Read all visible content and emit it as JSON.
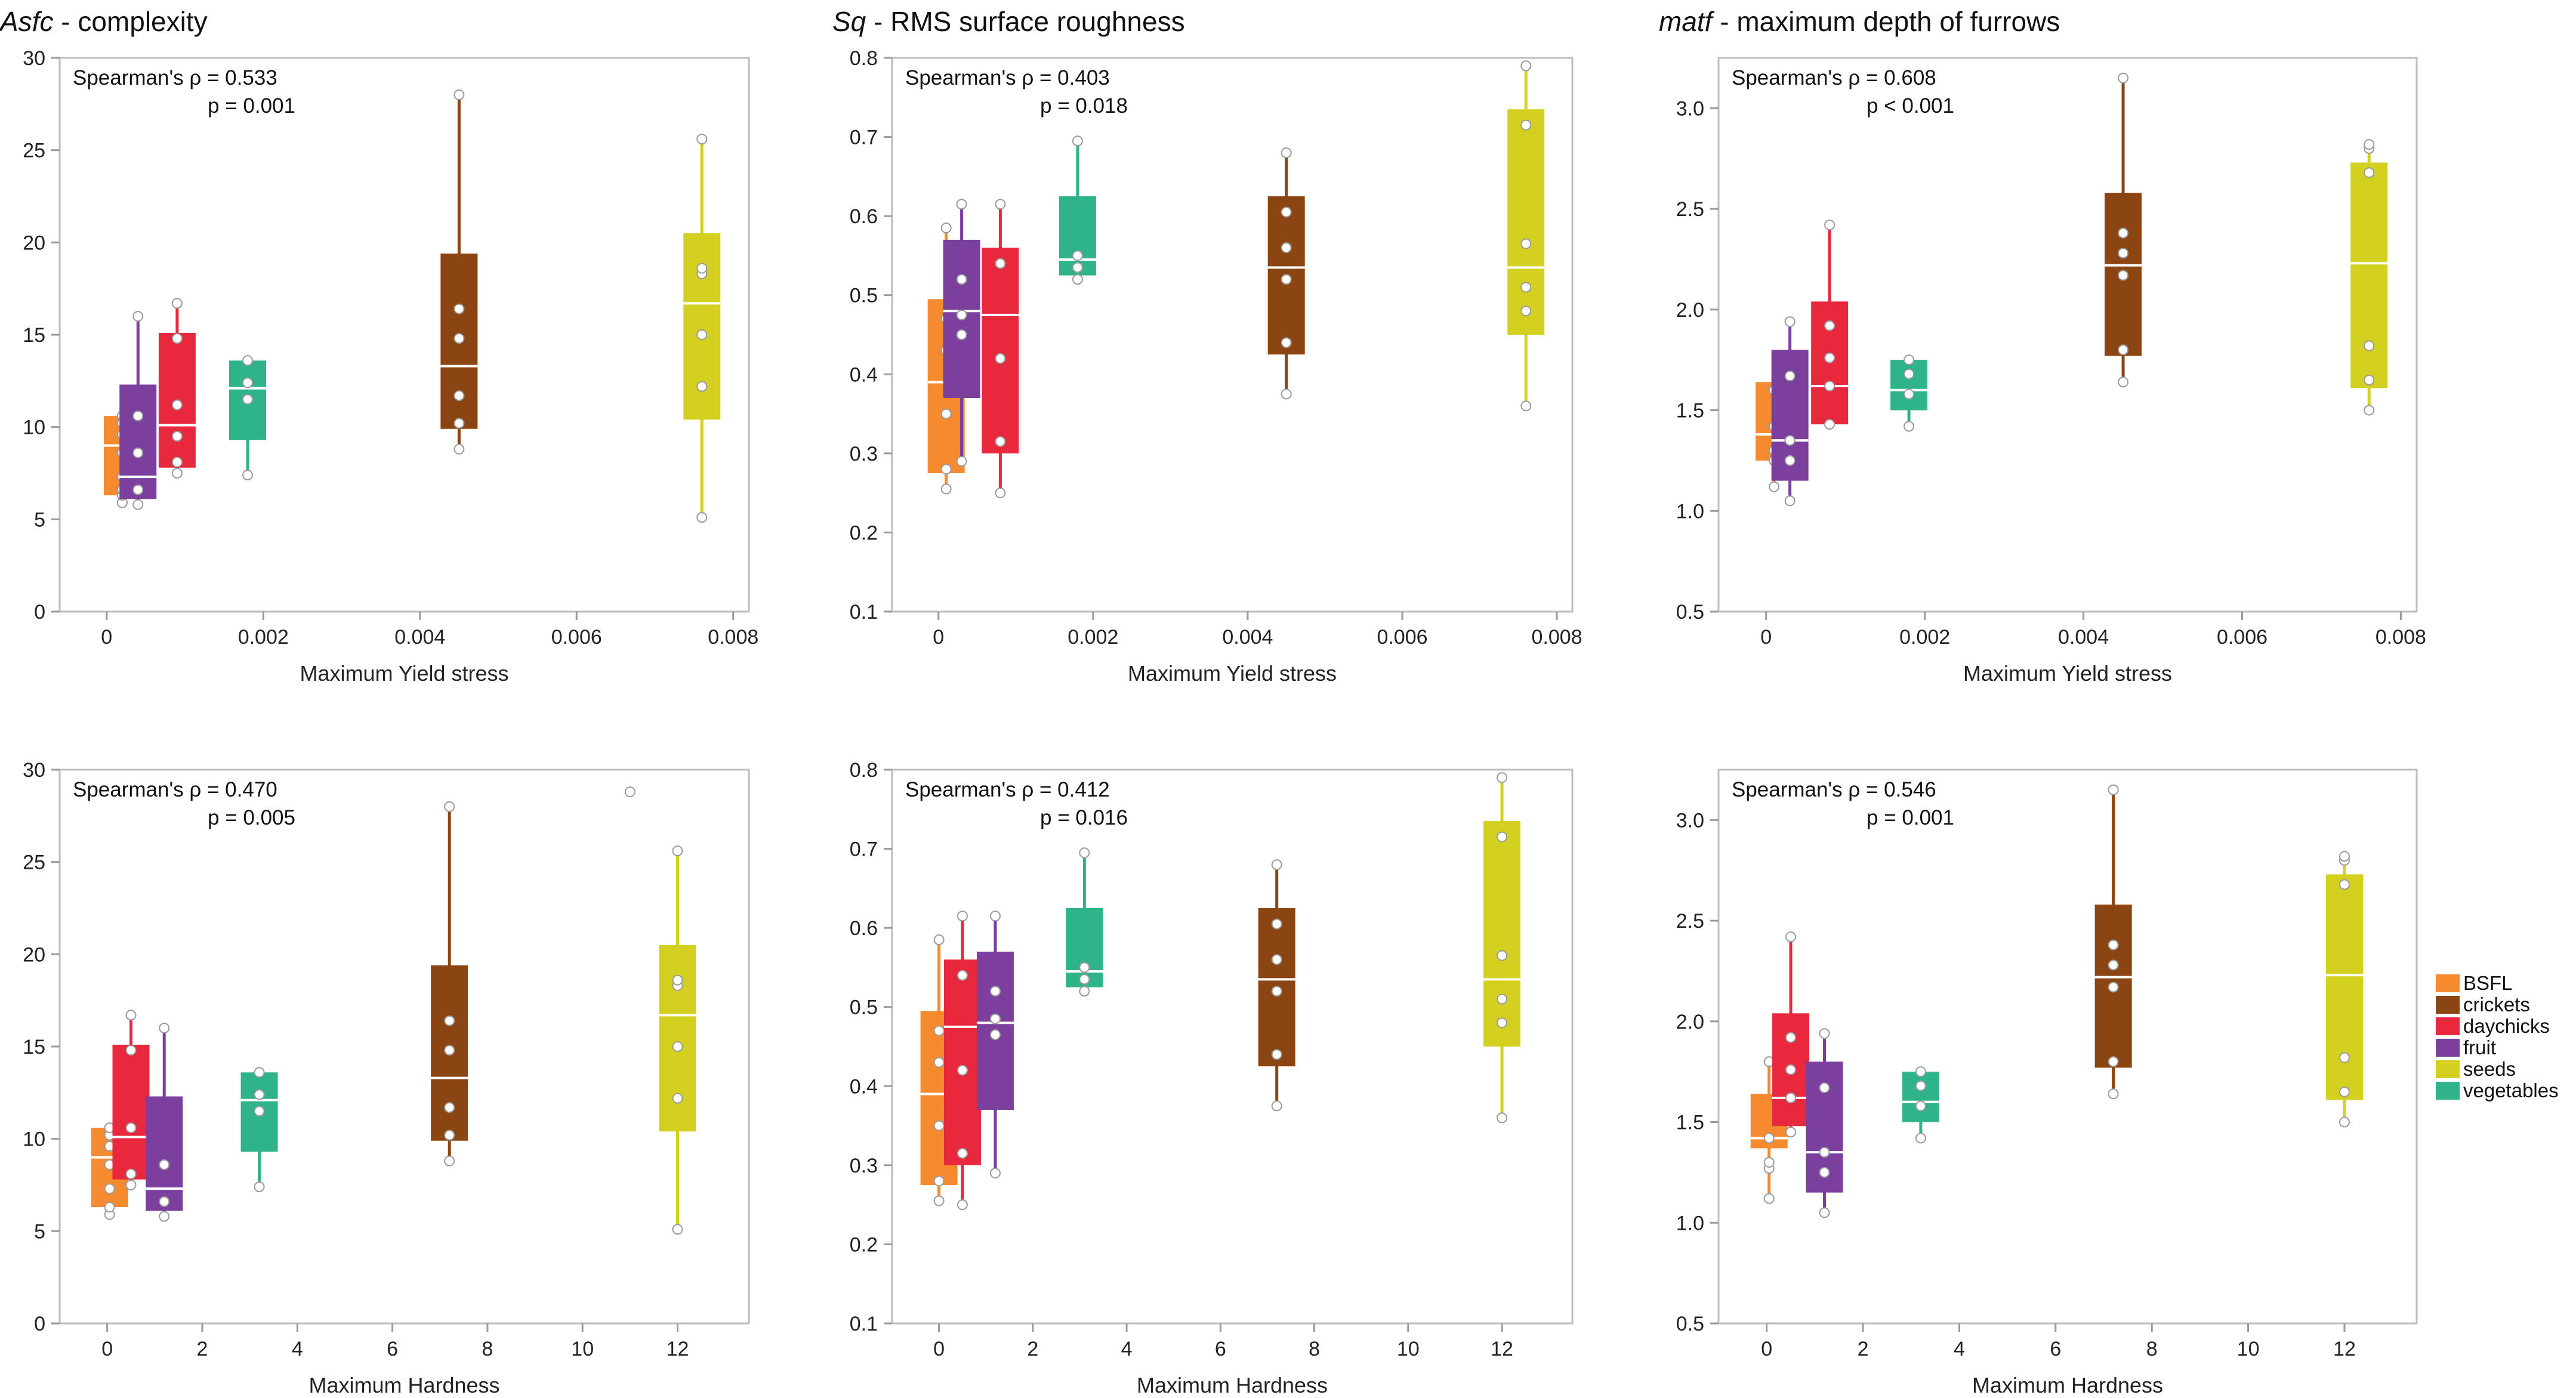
{
  "chart_data": [
    {
      "type": "box",
      "title_italic": "Asfc",
      "title_rest": " - complexity",
      "xlabel": "Maximum Yield stress",
      "ylabel": "",
      "xlim": [
        -0.0006,
        0.0082
      ],
      "ylim": [
        0,
        30
      ],
      "xticks": [
        0,
        0.002,
        0.004,
        0.006,
        0.008
      ],
      "xtick_labels": [
        "0",
        "0.002",
        "0.004",
        "0.006",
        "0.008"
      ],
      "yticks": [
        0,
        5,
        10,
        15,
        20,
        25,
        30
      ],
      "ytick_labels": [
        "0",
        "5",
        "10",
        "15",
        "20",
        "25",
        "30"
      ],
      "stat_line1": "Spearman's ρ = 0.533",
      "stat_line2": "p = 0.001",
      "boxes": [
        {
          "group": "BSFL",
          "x": 0.0002,
          "q1": 6.3,
          "median": 9.0,
          "q3": 10.6,
          "wlow": 5.9,
          "whigh": 10.6,
          "points": [
            5.9,
            6.3,
            6.6,
            7.3,
            8.6,
            9.6,
            10.2,
            10.6
          ]
        },
        {
          "group": "fruit",
          "x": 0.0004,
          "q1": 6.1,
          "median": 7.3,
          "q3": 12.3,
          "wlow": 5.8,
          "whigh": 16.0,
          "points": [
            5.8,
            6.6,
            8.6,
            10.6,
            16.0
          ]
        },
        {
          "group": "daychicks",
          "x": 0.0009,
          "q1": 7.8,
          "median": 10.1,
          "q3": 15.1,
          "wlow": 7.5,
          "whigh": 16.7,
          "points": [
            7.5,
            8.1,
            9.5,
            11.2,
            14.8,
            16.7
          ]
        },
        {
          "group": "vegetables",
          "x": 0.0018,
          "q1": 9.3,
          "median": 12.1,
          "q3": 13.6,
          "wlow": 7.4,
          "whigh": 13.6,
          "points": [
            7.4,
            11.5,
            12.4,
            13.6
          ]
        },
        {
          "group": "crickets",
          "x": 0.0045,
          "q1": 9.9,
          "median": 13.3,
          "q3": 19.4,
          "wlow": 8.8,
          "whigh": 28.0,
          "points": [
            8.8,
            10.2,
            11.7,
            14.8,
            16.4,
            28.0
          ]
        },
        {
          "group": "seeds",
          "x": 0.0076,
          "q1": 10.4,
          "median": 16.7,
          "q3": 20.5,
          "wlow": 5.1,
          "whigh": 25.6,
          "points": [
            5.1,
            12.2,
            15.0,
            18.3,
            18.6,
            25.6
          ]
        }
      ]
    },
    {
      "type": "box",
      "title_italic": "Sq",
      "title_rest": " - RMS surface roughness",
      "xlabel": "Maximum Yield stress",
      "ylabel": "",
      "xlim": [
        -0.0006,
        0.0082
      ],
      "ylim": [
        0.1,
        0.8
      ],
      "xticks": [
        0,
        0.002,
        0.004,
        0.006,
        0.008
      ],
      "xtick_labels": [
        "0",
        "0.002",
        "0.004",
        "0.006",
        "0.008"
      ],
      "yticks": [
        0.1,
        0.2,
        0.3,
        0.4,
        0.5,
        0.6,
        0.7,
        0.8
      ],
      "ytick_labels": [
        "0.1",
        "0.2",
        "0.3",
        "0.4",
        "0.5",
        "0.6",
        "0.7",
        "0.8"
      ],
      "stat_line1": "Spearman's ρ = 0.403",
      "stat_line2": "p = 0.018",
      "boxes": [
        {
          "group": "BSFL",
          "x": 0.0001,
          "q1": 0.275,
          "median": 0.39,
          "q3": 0.495,
          "wlow": 0.255,
          "whigh": 0.585,
          "points": [
            0.255,
            0.28,
            0.35,
            0.43,
            0.47,
            0.585
          ]
        },
        {
          "group": "fruit",
          "x": 0.0003,
          "q1": 0.37,
          "median": 0.48,
          "q3": 0.57,
          "wlow": 0.29,
          "whigh": 0.615,
          "points": [
            0.29,
            0.45,
            0.475,
            0.52,
            0.615
          ]
        },
        {
          "group": "daychicks",
          "x": 0.0008,
          "q1": 0.3,
          "median": 0.475,
          "q3": 0.56,
          "wlow": 0.25,
          "whigh": 0.615,
          "points": [
            0.25,
            0.315,
            0.42,
            0.54,
            0.615
          ]
        },
        {
          "group": "vegetables",
          "x": 0.0018,
          "q1": 0.525,
          "median": 0.545,
          "q3": 0.625,
          "wlow": 0.52,
          "whigh": 0.695,
          "points": [
            0.52,
            0.535,
            0.55,
            0.695
          ]
        },
        {
          "group": "crickets",
          "x": 0.0045,
          "q1": 0.425,
          "median": 0.535,
          "q3": 0.625,
          "wlow": 0.375,
          "whigh": 0.68,
          "points": [
            0.375,
            0.44,
            0.52,
            0.56,
            0.605,
            0.68
          ]
        },
        {
          "group": "seeds",
          "x": 0.0076,
          "q1": 0.45,
          "median": 0.535,
          "q3": 0.735,
          "wlow": 0.36,
          "whigh": 0.79,
          "points": [
            0.36,
            0.48,
            0.51,
            0.565,
            0.715,
            0.79
          ]
        }
      ]
    },
    {
      "type": "box",
      "title_italic": "matf",
      "title_rest": " - maximum depth of furrows",
      "xlabel": "Maximum Yield stress",
      "ylabel": "",
      "xlim": [
        -0.0006,
        0.0082
      ],
      "ylim": [
        0.5,
        3.25
      ],
      "xticks": [
        0,
        0.002,
        0.004,
        0.006,
        0.008
      ],
      "xtick_labels": [
        "0",
        "0.002",
        "0.004",
        "0.006",
        "0.008"
      ],
      "yticks": [
        0.5,
        1.0,
        1.5,
        2.0,
        2.5,
        3.0
      ],
      "ytick_labels": [
        "0.5",
        "1.0",
        "1.5",
        "2.0",
        "2.5",
        "3.0"
      ],
      "stat_line1": "Spearman's ρ = 0.608",
      "stat_line2": "p < 0.001",
      "boxes": [
        {
          "group": "BSFL",
          "x": 0.0001,
          "q1": 1.25,
          "median": 1.38,
          "q3": 1.64,
          "wlow": 1.12,
          "whigh": 1.64,
          "points": [
            1.12,
            1.25,
            1.3,
            1.42,
            1.6
          ]
        },
        {
          "group": "fruit",
          "x": 0.0003,
          "q1": 1.15,
          "median": 1.35,
          "q3": 1.8,
          "wlow": 1.05,
          "whigh": 1.94,
          "points": [
            1.05,
            1.25,
            1.35,
            1.67,
            1.94
          ]
        },
        {
          "group": "daychicks",
          "x": 0.0008,
          "q1": 1.43,
          "median": 1.62,
          "q3": 2.04,
          "wlow": 1.43,
          "whigh": 2.42,
          "points": [
            1.43,
            1.62,
            1.76,
            1.92,
            2.42
          ]
        },
        {
          "group": "vegetables",
          "x": 0.0018,
          "q1": 1.5,
          "median": 1.6,
          "q3": 1.75,
          "wlow": 1.42,
          "whigh": 1.75,
          "points": [
            1.42,
            1.58,
            1.68,
            1.75
          ]
        },
        {
          "group": "crickets",
          "x": 0.0045,
          "q1": 1.77,
          "median": 2.22,
          "q3": 2.58,
          "wlow": 1.64,
          "whigh": 3.15,
          "points": [
            1.64,
            1.8,
            2.17,
            2.28,
            2.38,
            3.15
          ]
        },
        {
          "group": "seeds",
          "x": 0.0076,
          "q1": 1.61,
          "median": 2.23,
          "q3": 2.73,
          "wlow": 1.5,
          "whigh": 2.82,
          "points": [
            1.5,
            1.65,
            1.82,
            2.68,
            2.8,
            2.82
          ]
        }
      ]
    },
    {
      "type": "box",
      "title_italic": "",
      "title_rest": "",
      "xlabel": "Maximum Hardness",
      "ylabel": "",
      "xlim": [
        -1.0,
        13.5
      ],
      "ylim": [
        0,
        30
      ],
      "xticks": [
        0,
        2,
        4,
        6,
        8,
        10,
        12
      ],
      "xtick_labels": [
        "0",
        "2",
        "4",
        "6",
        "8",
        "10",
        "12"
      ],
      "yticks": [
        0,
        5,
        10,
        15,
        20,
        25,
        30
      ],
      "ytick_labels": [
        "0",
        "5",
        "10",
        "15",
        "20",
        "25",
        "30"
      ],
      "stat_line1": "Spearman's ρ = 0.470",
      "stat_line2": "p = 0.005",
      "boxes": [
        {
          "group": "BSFL",
          "x": 0.05,
          "q1": 6.3,
          "median": 9.0,
          "q3": 10.6,
          "wlow": 5.9,
          "whigh": 10.6,
          "points": [
            5.9,
            6.3,
            7.3,
            8.6,
            9.6,
            10.2,
            10.6
          ]
        },
        {
          "group": "daychicks",
          "x": 0.5,
          "q1": 7.8,
          "median": 10.1,
          "q3": 15.1,
          "wlow": 7.5,
          "whigh": 16.7,
          "points": [
            7.5,
            8.1,
            10.6,
            14.8,
            16.7
          ]
        },
        {
          "group": "fruit",
          "x": 1.2,
          "q1": 6.1,
          "median": 7.3,
          "q3": 12.3,
          "wlow": 5.8,
          "whigh": 16.0,
          "points": [
            5.8,
            6.6,
            8.6,
            16.0
          ]
        },
        {
          "group": "vegetables",
          "x": 3.2,
          "q1": 9.3,
          "median": 12.1,
          "q3": 13.6,
          "wlow": 7.4,
          "whigh": 13.6,
          "points": [
            7.4,
            11.5,
            12.4,
            13.6
          ]
        },
        {
          "group": "crickets",
          "x": 7.2,
          "q1": 9.9,
          "median": 13.3,
          "q3": 19.4,
          "wlow": 8.8,
          "whigh": 28.0,
          "points": [
            8.8,
            10.2,
            11.7,
            14.8,
            16.4,
            28.0
          ]
        },
        {
          "group": "seeds",
          "x": 12.0,
          "q1": 10.4,
          "median": 16.7,
          "q3": 20.5,
          "wlow": 5.1,
          "whigh": 25.6,
          "points": [
            5.1,
            12.2,
            15.0,
            18.3,
            18.6,
            25.6
          ]
        }
      ],
      "outliers": [
        {
          "x": 11.0,
          "y": 28.8
        }
      ]
    },
    {
      "type": "box",
      "title_italic": "",
      "title_rest": "",
      "xlabel": "Maximum Hardness",
      "ylabel": "",
      "xlim": [
        -1.0,
        13.5
      ],
      "ylim": [
        0.1,
        0.8
      ],
      "xticks": [
        0,
        2,
        4,
        6,
        8,
        10,
        12
      ],
      "xtick_labels": [
        "0",
        "2",
        "4",
        "6",
        "8",
        "10",
        "12"
      ],
      "yticks": [
        0.1,
        0.2,
        0.3,
        0.4,
        0.5,
        0.6,
        0.7,
        0.8
      ],
      "ytick_labels": [
        "0.1",
        "0.2",
        "0.3",
        "0.4",
        "0.5",
        "0.6",
        "0.7",
        "0.8"
      ],
      "stat_line1": "Spearman's ρ = 0.412",
      "stat_line2": "p = 0.016",
      "boxes": [
        {
          "group": "BSFL",
          "x": 0.0,
          "q1": 0.275,
          "median": 0.39,
          "q3": 0.495,
          "wlow": 0.255,
          "whigh": 0.585,
          "points": [
            0.255,
            0.28,
            0.35,
            0.43,
            0.47,
            0.585
          ]
        },
        {
          "group": "daychicks",
          "x": 0.5,
          "q1": 0.3,
          "median": 0.475,
          "q3": 0.56,
          "wlow": 0.25,
          "whigh": 0.615,
          "points": [
            0.25,
            0.315,
            0.42,
            0.54,
            0.615
          ]
        },
        {
          "group": "fruit",
          "x": 1.2,
          "q1": 0.37,
          "median": 0.48,
          "q3": 0.57,
          "wlow": 0.29,
          "whigh": 0.615,
          "points": [
            0.29,
            0.465,
            0.485,
            0.52,
            0.615
          ]
        },
        {
          "group": "vegetables",
          "x": 3.1,
          "q1": 0.525,
          "median": 0.545,
          "q3": 0.625,
          "wlow": 0.52,
          "whigh": 0.695,
          "points": [
            0.52,
            0.535,
            0.55,
            0.695
          ]
        },
        {
          "group": "crickets",
          "x": 7.2,
          "q1": 0.425,
          "median": 0.535,
          "q3": 0.625,
          "wlow": 0.375,
          "whigh": 0.68,
          "points": [
            0.375,
            0.44,
            0.52,
            0.56,
            0.605,
            0.68
          ]
        },
        {
          "group": "seeds",
          "x": 12.0,
          "q1": 0.45,
          "median": 0.535,
          "q3": 0.735,
          "wlow": 0.36,
          "whigh": 0.79,
          "points": [
            0.36,
            0.48,
            0.51,
            0.565,
            0.715,
            0.79
          ]
        }
      ]
    },
    {
      "type": "box",
      "title_italic": "",
      "title_rest": "",
      "xlabel": "Maximum Hardness",
      "ylabel": "",
      "xlim": [
        -1.0,
        13.5
      ],
      "ylim": [
        0.5,
        3.25
      ],
      "xticks": [
        0,
        2,
        4,
        6,
        8,
        10,
        12
      ],
      "xtick_labels": [
        "0",
        "2",
        "4",
        "6",
        "8",
        "10",
        "12"
      ],
      "yticks": [
        0.5,
        1.0,
        1.5,
        2.0,
        2.5,
        3.0
      ],
      "ytick_labels": [
        "0.5",
        "1.0",
        "1.5",
        "2.0",
        "2.5",
        "3.0"
      ],
      "stat_line1": "Spearman's ρ = 0.546",
      "stat_line2": "p = 0.001",
      "boxes": [
        {
          "group": "BSFL",
          "x": 0.05,
          "q1": 1.37,
          "median": 1.42,
          "q3": 1.64,
          "wlow": 1.12,
          "whigh": 1.8,
          "points": [
            1.12,
            1.27,
            1.3,
            1.42,
            1.8
          ]
        },
        {
          "group": "daychicks",
          "x": 0.5,
          "q1": 1.48,
          "median": 1.62,
          "q3": 2.04,
          "wlow": 1.45,
          "whigh": 2.42,
          "points": [
            1.45,
            1.62,
            1.76,
            1.92,
            2.42
          ]
        },
        {
          "group": "fruit",
          "x": 1.2,
          "q1": 1.15,
          "median": 1.35,
          "q3": 1.8,
          "wlow": 1.05,
          "whigh": 1.94,
          "points": [
            1.05,
            1.25,
            1.35,
            1.67,
            1.94
          ]
        },
        {
          "group": "vegetables",
          "x": 3.2,
          "q1": 1.5,
          "median": 1.6,
          "q3": 1.75,
          "wlow": 1.42,
          "whigh": 1.75,
          "points": [
            1.42,
            1.58,
            1.68,
            1.75
          ]
        },
        {
          "group": "crickets",
          "x": 7.2,
          "q1": 1.77,
          "median": 2.22,
          "q3": 2.58,
          "wlow": 1.64,
          "whigh": 3.15,
          "points": [
            1.64,
            1.8,
            2.17,
            2.28,
            2.38,
            3.15
          ]
        },
        {
          "group": "seeds",
          "x": 12.0,
          "q1": 1.61,
          "median": 2.23,
          "q3": 2.73,
          "wlow": 1.5,
          "whigh": 2.82,
          "points": [
            1.5,
            1.65,
            1.82,
            2.68,
            2.8,
            2.82
          ]
        }
      ]
    }
  ],
  "legend": {
    "items": [
      {
        "label": "BSFL",
        "color": "#f58b2e"
      },
      {
        "label": "crickets",
        "color": "#8b4513"
      },
      {
        "label": "daychicks",
        "color": "#e8283c"
      },
      {
        "label": "fruit",
        "color": "#7b3f9e"
      },
      {
        "label": "seeds",
        "color": "#d4d020"
      },
      {
        "label": "vegetables",
        "color": "#2fb38a"
      }
    ]
  }
}
